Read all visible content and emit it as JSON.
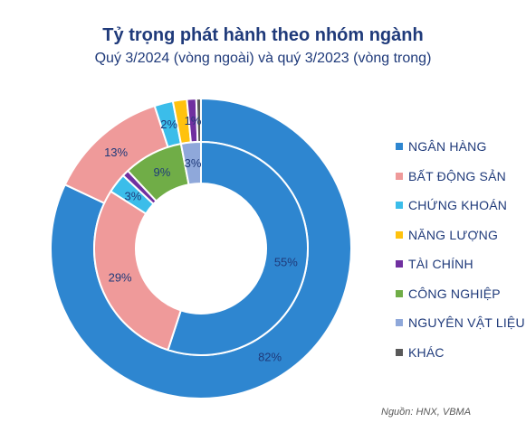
{
  "title": "Tỷ trọng phát hành theo nhóm ngành",
  "subtitle": "Quý 3/2024 (vòng ngoài) và quý 3/2023 (vòng trong)",
  "source": "Nguồn: HNX, VBMA",
  "chart_data": {
    "type": "pie",
    "variant": "nested-donut",
    "title": "Tỷ trọng phát hành theo nhóm ngành",
    "subtitle": "Quý 3/2024 (vòng ngoài) và quý 3/2023 (vòng trong)",
    "legend_position": "right",
    "categories": [
      "NGÂN HÀNG",
      "BẤT ĐỘNG SẢN",
      "CHỨNG KHOÁN",
      "NĂNG LƯỢNG",
      "TÀI CHÍNH",
      "CÔNG NGHIỆP",
      "NGUYÊN VẬT LIỆU",
      "KHÁC"
    ],
    "colors": [
      "#2e86d0",
      "#ef9a9a",
      "#3bbdea",
      "#ffc20e",
      "#7030a0",
      "#70ad47",
      "#8fa8da",
      "#595959"
    ],
    "series": [
      {
        "name": "Quý 3/2024",
        "ring": "outer",
        "values": [
          82,
          13,
          2,
          1.5,
          1,
          0,
          0,
          0.5
        ],
        "labels": [
          "82%",
          "13%",
          "2%",
          "",
          "1%",
          "",
          "",
          ""
        ]
      },
      {
        "name": "Quý 3/2023",
        "ring": "inner",
        "values": [
          55,
          29,
          3,
          0,
          1,
          9,
          3,
          0
        ],
        "labels": [
          "55%",
          "29%",
          "3%",
          "",
          "",
          "9%",
          "3%",
          ""
        ]
      }
    ]
  }
}
